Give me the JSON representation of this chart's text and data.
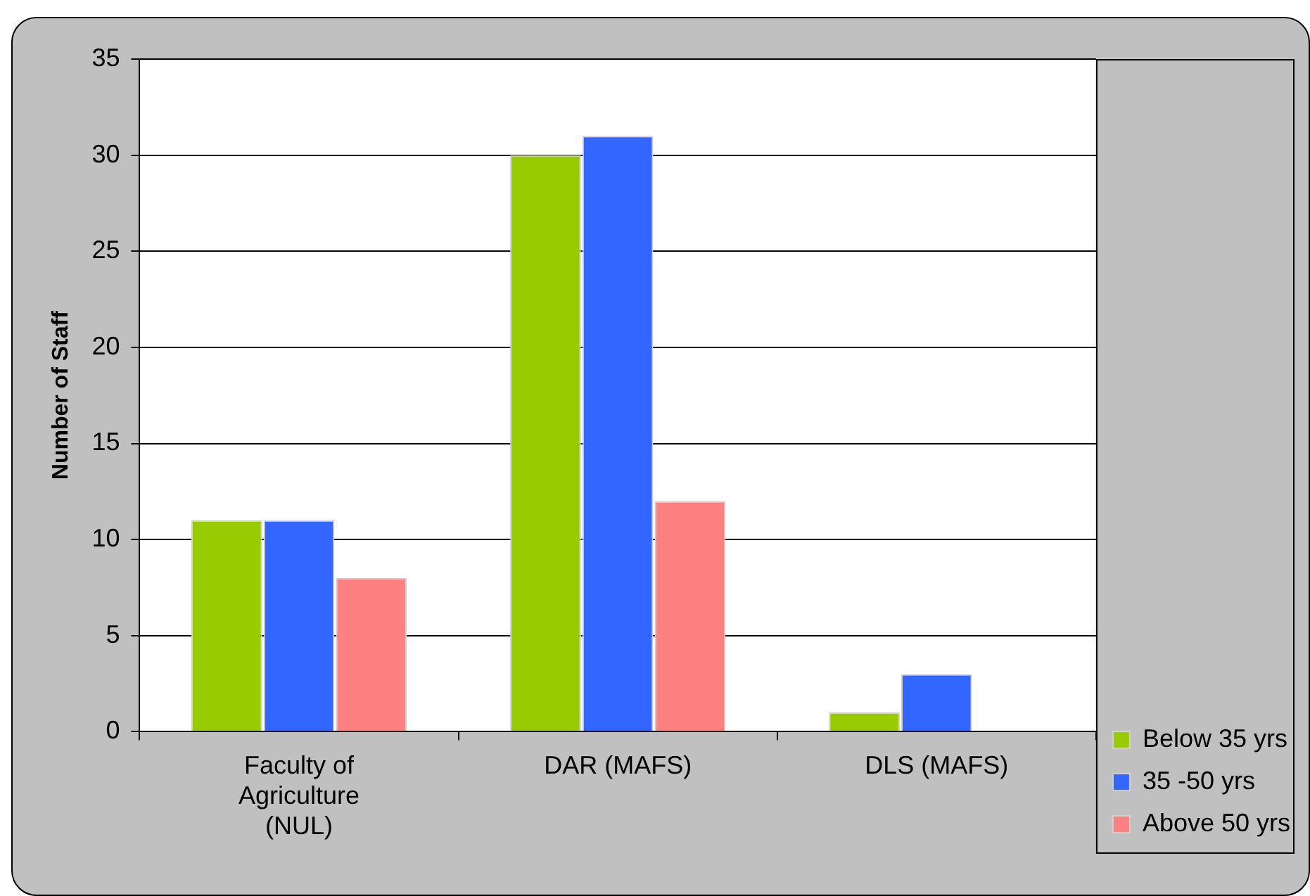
{
  "chart_data": {
    "type": "bar",
    "ylabel": "Number of Staff",
    "categories": [
      "Faculty of Agriculture (NUL)",
      "DAR (MAFS)",
      "DLS (MAFS)"
    ],
    "series": [
      {
        "name": "Below 35 yrs",
        "color": "#99cc00",
        "values": [
          11,
          30,
          1
        ]
      },
      {
        "name": "35 -50 yrs",
        "color": "#3366ff",
        "values": [
          11,
          31,
          3
        ]
      },
      {
        "name": "Above 50 yrs",
        "color": "#ff8080",
        "values": [
          8,
          12,
          0
        ]
      }
    ],
    "ylim": [
      0,
      35
    ],
    "yticks": [
      0,
      5,
      10,
      15,
      20,
      25,
      30,
      35
    ],
    "grid": "y",
    "legend": "right"
  }
}
